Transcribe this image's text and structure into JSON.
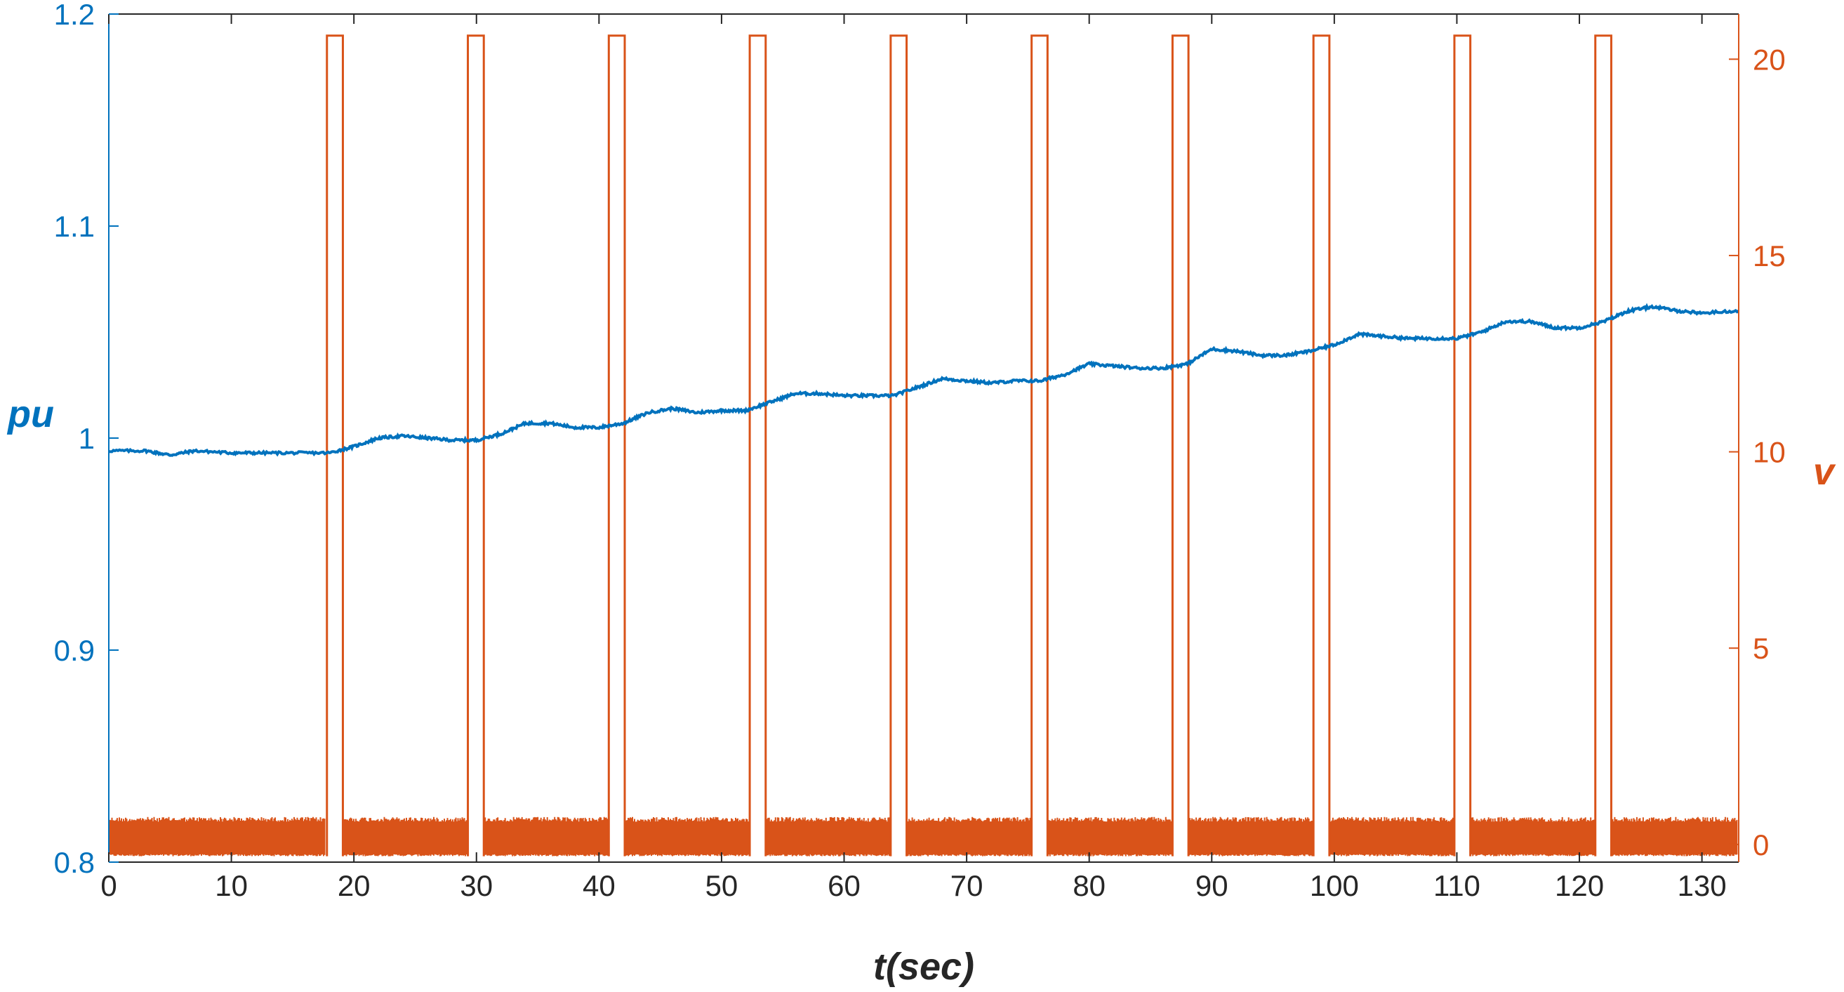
{
  "chart_data": {
    "type": "line",
    "title": "",
    "xlabel": "t(sec)",
    "ylabel_left": "pu",
    "ylabel_right": "v",
    "xlim": [
      0,
      133
    ],
    "ylim_left": [
      0.8,
      1.2
    ],
    "ylim_right": [
      -0.45,
      21.15
    ],
    "grid": false,
    "x_ticks": [
      "0",
      "10",
      "20",
      "30",
      "40",
      "50",
      "60",
      "70",
      "80",
      "90",
      "100",
      "110",
      "120",
      "130"
    ],
    "y_left_ticks": [
      "0.8",
      "0.9",
      "1",
      "1.1",
      "1.2"
    ],
    "y_right_ticks": [
      "0",
      "5",
      "10",
      "15",
      "20"
    ],
    "colors": {
      "left": "#0072BD",
      "right": "#D95319",
      "axis": "#262626"
    },
    "series": [
      {
        "axis": "left",
        "color": "#0072BD",
        "x": [
          0,
          3,
          5,
          7,
          10,
          12,
          15,
          18,
          20,
          22,
          24,
          26,
          28,
          30,
          32,
          34,
          36,
          38,
          40,
          42,
          44,
          46,
          48,
          50,
          52,
          54,
          56,
          58,
          60,
          62,
          64,
          66,
          68,
          70,
          72,
          74,
          76,
          78,
          80,
          82,
          84,
          86,
          88,
          90,
          92,
          94,
          96,
          98,
          100,
          102,
          104,
          106,
          108,
          110,
          112,
          114,
          116,
          118,
          120,
          122,
          124,
          126,
          128,
          130,
          133
        ],
        "y": [
          0.994,
          0.994,
          0.992,
          0.994,
          0.993,
          0.993,
          0.993,
          0.993,
          0.996,
          1.0,
          1.001,
          1.0,
          0.999,
          0.999,
          1.002,
          1.007,
          1.007,
          1.005,
          1.005,
          1.007,
          1.012,
          1.014,
          1.012,
          1.013,
          1.013,
          1.017,
          1.021,
          1.021,
          1.02,
          1.02,
          1.02,
          1.024,
          1.028,
          1.027,
          1.026,
          1.027,
          1.027,
          1.03,
          1.035,
          1.034,
          1.033,
          1.033,
          1.035,
          1.042,
          1.041,
          1.039,
          1.039,
          1.041,
          1.044,
          1.049,
          1.048,
          1.047,
          1.047,
          1.047,
          1.05,
          1.055,
          1.055,
          1.052,
          1.052,
          1.055,
          1.06,
          1.062,
          1.06,
          1.059,
          1.06
        ]
      },
      {
        "axis": "right",
        "color": "#D95319",
        "pulse_high": 20.6,
        "noise_range": [
          -0.3,
          0.7
        ],
        "pulses": [
          [
            17.8,
            19.1
          ],
          [
            29.3,
            30.6
          ],
          [
            40.8,
            42.1
          ],
          [
            52.3,
            53.6
          ],
          [
            63.8,
            65.1
          ],
          [
            75.3,
            76.6
          ],
          [
            86.8,
            88.1
          ],
          [
            98.3,
            99.6
          ],
          [
            109.8,
            111.1
          ],
          [
            121.3,
            122.6
          ]
        ]
      }
    ]
  }
}
